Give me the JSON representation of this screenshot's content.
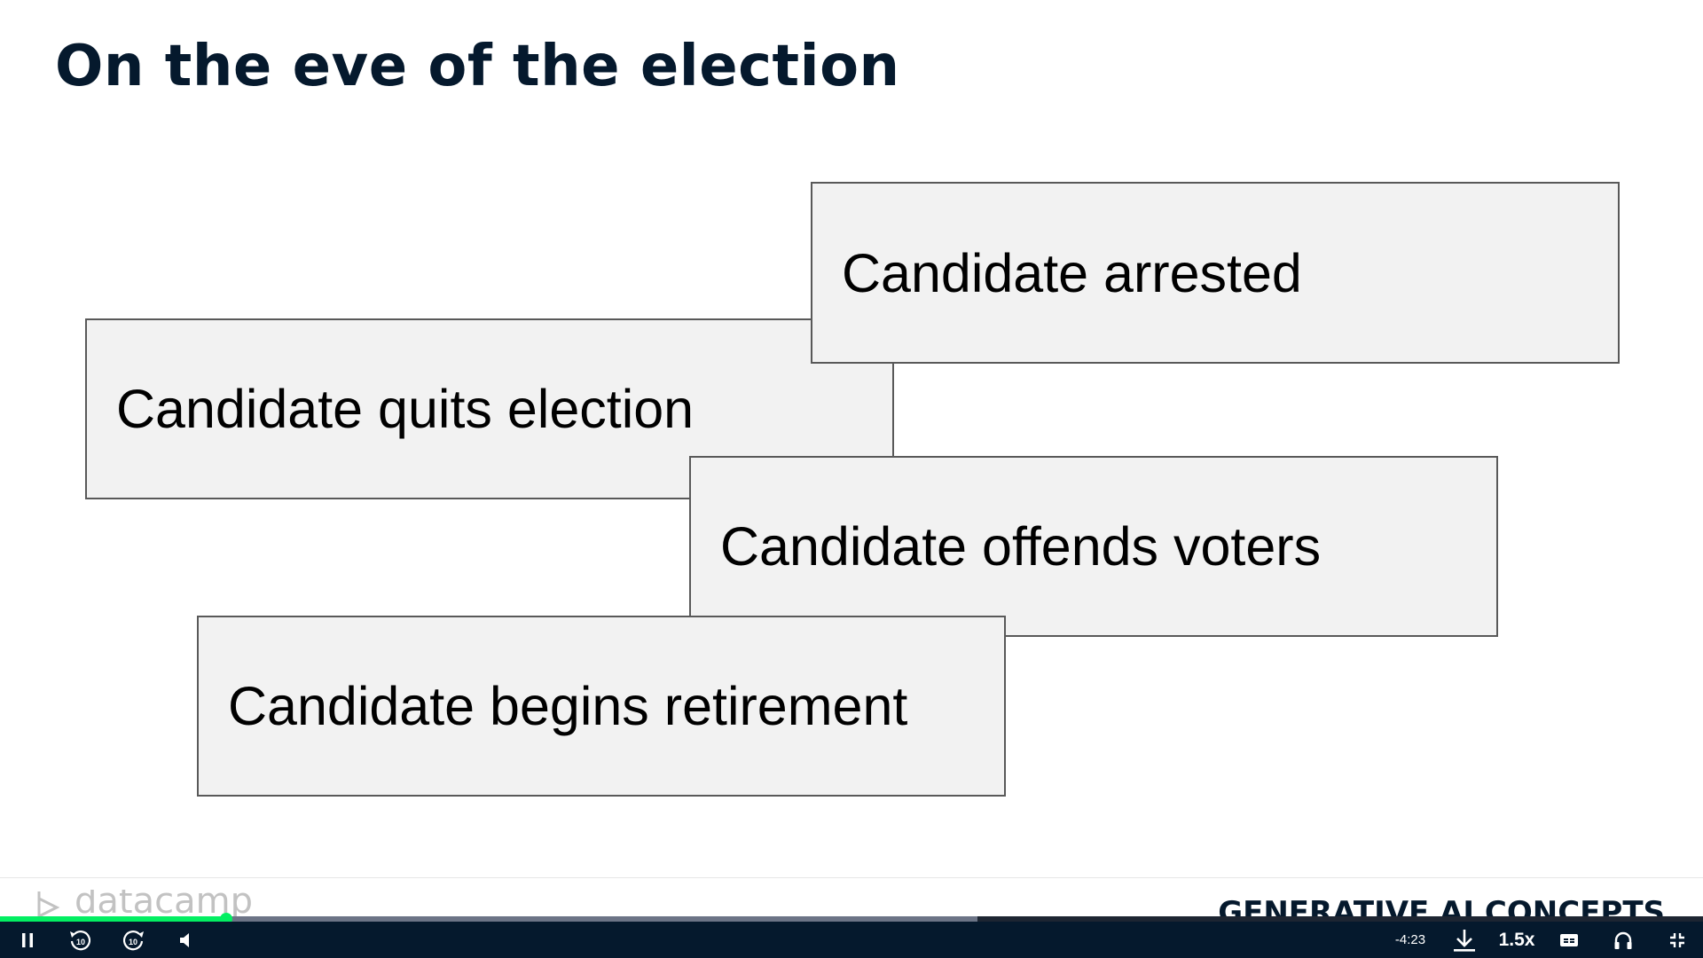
{
  "slide": {
    "title": "On the eve of the election",
    "boxes": {
      "quits": "Candidate quits election",
      "arrested": "Candidate arrested",
      "offends": "Candidate offends voters",
      "retire": "Candidate begins retirement"
    }
  },
  "footer": {
    "logo_text": "datacamp",
    "course_title": "GENERATIVE AI CONCEPTS"
  },
  "player": {
    "progress_fraction": 0.133,
    "buffered_fraction": 0.574,
    "time_remaining": "-4:23",
    "playback_speed": "1.5x",
    "skip_back_seconds": "10",
    "skip_forward_seconds": "10",
    "colors": {
      "progress": "#03ef62",
      "bar_background": "#05192d",
      "title": "#05192d"
    },
    "icons": [
      "pause-icon",
      "rewind-10-icon",
      "forward-10-icon",
      "volume-icon",
      "download-icon",
      "captions-icon",
      "headphones-icon",
      "exit-fullscreen-icon"
    ]
  }
}
